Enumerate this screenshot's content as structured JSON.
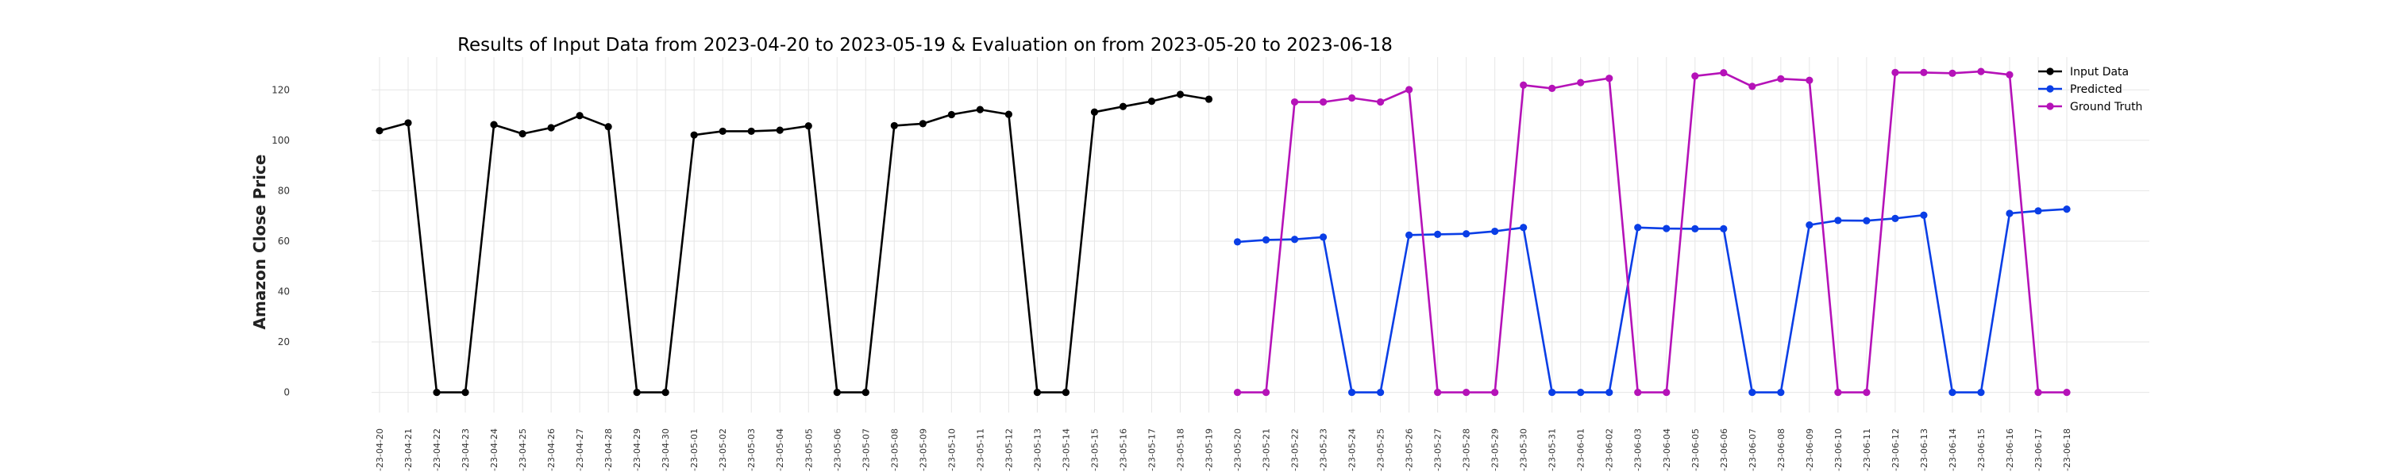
{
  "chart_data": {
    "type": "line",
    "title": "Results of Input Data from 2023-04-20 to 2023-05-19 & Evaluation on from 2023-05-20 to 2023-06-18",
    "xlabel": "",
    "ylabel": "Amazon Close Price",
    "ylim": [
      -8,
      133
    ],
    "yticks": [
      0,
      20,
      40,
      60,
      80,
      100,
      120
    ],
    "grid": true,
    "legend_position": "top-right",
    "categories": [
      "2023-04-20",
      "2023-04-21",
      "2023-04-22",
      "2023-04-23",
      "2023-04-24",
      "2023-04-25",
      "2023-04-26",
      "2023-04-27",
      "2023-04-28",
      "2023-04-29",
      "2023-04-30",
      "2023-05-01",
      "2023-05-02",
      "2023-05-03",
      "2023-05-04",
      "2023-05-05",
      "2023-05-06",
      "2023-05-07",
      "2023-05-08",
      "2023-05-09",
      "2023-05-10",
      "2023-05-11",
      "2023-05-12",
      "2023-05-13",
      "2023-05-14",
      "2023-05-15",
      "2023-05-16",
      "2023-05-17",
      "2023-05-18",
      "2023-05-19",
      "2023-05-20",
      "2023-05-21",
      "2023-05-22",
      "2023-05-23",
      "2023-05-24",
      "2023-05-25",
      "2023-05-26",
      "2023-05-27",
      "2023-05-28",
      "2023-05-29",
      "2023-05-30",
      "2023-05-31",
      "2023-06-01",
      "2023-06-02",
      "2023-06-03",
      "2023-06-04",
      "2023-06-05",
      "2023-06-06",
      "2023-06-07",
      "2023-06-08",
      "2023-06-09",
      "2023-06-10",
      "2023-06-11",
      "2023-06-12",
      "2023-06-13",
      "2023-06-14",
      "2023-06-15",
      "2023-06-16",
      "2023-06-17",
      "2023-06-18"
    ],
    "xtick_labels": [
      "-23-04-20",
      "-23-04-21",
      "-23-04-22",
      "-23-04-23",
      "-23-04-24",
      "-23-04-25",
      "-23-04-26",
      "-23-04-27",
      "-23-04-28",
      "-23-04-29",
      "-23-04-30",
      "-23-05-01",
      "-23-05-02",
      "-23-05-03",
      "-23-05-04",
      "-23-05-05",
      "-23-05-06",
      "-23-05-07",
      "-23-05-08",
      "-23-05-09",
      "-23-05-10",
      "-23-05-11",
      "-23-05-12",
      "-23-05-13",
      "-23-05-14",
      "-23-05-15",
      "-23-05-16",
      "-23-05-17",
      "-23-05-18",
      "-23-05-19",
      "-23-05-20",
      "-23-05-21",
      "-23-05-22",
      "-23-05-23",
      "-23-05-24",
      "-23-05-25",
      "-23-05-26",
      "-23-05-27",
      "-23-05-28",
      "-23-05-29",
      "-23-05-30",
      "-23-05-31",
      "-23-06-01",
      "-23-06-02",
      "-23-06-03",
      "-23-06-04",
      "-23-06-05",
      "-23-06-06",
      "-23-06-07",
      "-23-06-08",
      "-23-06-09",
      "-23-06-10",
      "-23-06-11",
      "-23-06-12",
      "-23-06-13",
      "-23-06-14",
      "-23-06-15",
      "-23-06-16",
      "-23-06-17",
      "-23-06-18"
    ],
    "series": [
      {
        "name": "Input Data",
        "color": "#000000",
        "x": [
          "2023-04-20",
          "2023-04-21",
          "2023-04-22",
          "2023-04-23",
          "2023-04-24",
          "2023-04-25",
          "2023-04-26",
          "2023-04-27",
          "2023-04-28",
          "2023-04-29",
          "2023-04-30",
          "2023-05-01",
          "2023-05-02",
          "2023-05-03",
          "2023-05-04",
          "2023-05-05",
          "2023-05-06",
          "2023-05-07",
          "2023-05-08",
          "2023-05-09",
          "2023-05-10",
          "2023-05-11",
          "2023-05-12",
          "2023-05-13",
          "2023-05-14",
          "2023-05-15",
          "2023-05-16",
          "2023-05-17",
          "2023-05-18",
          "2023-05-19"
        ],
        "values": [
          103.8,
          106.9,
          0,
          0,
          106.2,
          102.6,
          105.0,
          109.8,
          105.4,
          0,
          0,
          102.1,
          103.6,
          103.6,
          104.0,
          105.7,
          0,
          0,
          105.8,
          106.6,
          110.2,
          112.2,
          110.3,
          0,
          0,
          111.2,
          113.4,
          115.5,
          118.2,
          116.3
        ]
      },
      {
        "name": "Predicted",
        "color": "#0a3ee6",
        "x": [
          "2023-05-20",
          "2023-05-21",
          "2023-05-22",
          "2023-05-23",
          "2023-05-24",
          "2023-05-25",
          "2023-05-26",
          "2023-05-27",
          "2023-05-28",
          "2023-05-29",
          "2023-05-30",
          "2023-05-31",
          "2023-06-01",
          "2023-06-02",
          "2023-06-03",
          "2023-06-04",
          "2023-06-05",
          "2023-06-06",
          "2023-06-07",
          "2023-06-08",
          "2023-06-09",
          "2023-06-10",
          "2023-06-11",
          "2023-06-12",
          "2023-06-13",
          "2023-06-14",
          "2023-06-15",
          "2023-06-16",
          "2023-06-17",
          "2023-06-18"
        ],
        "values": [
          59.7,
          60.5,
          60.7,
          61.6,
          0,
          0,
          62.4,
          62.7,
          62.9,
          63.9,
          65.4,
          0,
          0,
          0,
          65.4,
          65.0,
          64.9,
          64.9,
          0,
          0,
          66.4,
          68.2,
          68.1,
          69.0,
          70.3,
          0,
          0,
          71.0,
          72.0,
          72.7
        ]
      },
      {
        "name": "Ground Truth",
        "color": "#b512b8",
        "x": [
          "2023-05-20",
          "2023-05-21",
          "2023-05-22",
          "2023-05-23",
          "2023-05-24",
          "2023-05-25",
          "2023-05-26",
          "2023-05-27",
          "2023-05-28",
          "2023-05-29",
          "2023-05-30",
          "2023-05-31",
          "2023-06-01",
          "2023-06-02",
          "2023-06-03",
          "2023-06-04",
          "2023-06-05",
          "2023-06-06",
          "2023-06-07",
          "2023-06-08",
          "2023-06-09",
          "2023-06-10",
          "2023-06-11",
          "2023-06-12",
          "2023-06-13",
          "2023-06-14",
          "2023-06-15",
          "2023-06-16",
          "2023-06-17",
          "2023-06-18"
        ],
        "values": [
          0,
          0,
          115.2,
          115.2,
          116.8,
          115.2,
          120.1,
          0,
          0,
          0,
          121.9,
          120.6,
          122.9,
          124.6,
          0,
          0,
          125.5,
          126.8,
          121.4,
          124.4,
          123.8,
          0,
          0,
          126.9,
          126.9,
          126.6,
          127.3,
          126.0,
          0,
          0
        ]
      }
    ]
  }
}
